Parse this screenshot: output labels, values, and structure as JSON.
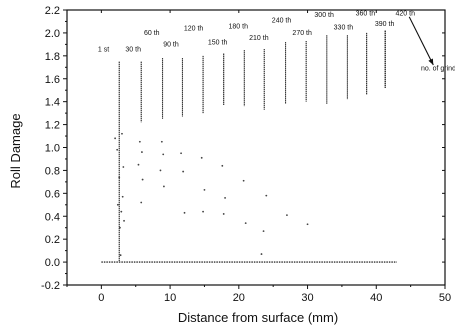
{
  "chart_data": {
    "type": "scatter",
    "title": "",
    "xlabel": "Distance from surface (mm)",
    "ylabel": "Roll Damage",
    "xlim": [
      -5,
      50
    ],
    "ylim": [
      -0.2,
      2.2
    ],
    "xticks": [
      0,
      10,
      20,
      30,
      40,
      50
    ],
    "yticks": [
      -0.2,
      0.0,
      0.2,
      0.4,
      0.6,
      0.8,
      1.0,
      1.2,
      1.4,
      1.6,
      1.8,
      2.0,
      2.2
    ],
    "grid": false,
    "legend": "none",
    "series": [
      {
        "label": "1 st",
        "x": 2.6,
        "y_top": 1.75,
        "y_bottom": 0.0
      },
      {
        "label": "30 th",
        "x": 5.8,
        "y_top": 1.75,
        "y_bottom": 1.22
      },
      {
        "label": "60 th",
        "x": 8.9,
        "y_top": 1.78,
        "y_bottom": 1.25
      },
      {
        "label": "90 th",
        "x": 11.8,
        "y_top": 1.78,
        "y_bottom": 1.27
      },
      {
        "label": "120 th",
        "x": 14.8,
        "y_top": 1.8,
        "y_bottom": 1.3
      },
      {
        "label": "150 th",
        "x": 17.8,
        "y_top": 1.82,
        "y_bottom": 1.37
      },
      {
        "label": "180 th",
        "x": 20.8,
        "y_top": 1.85,
        "y_bottom": 1.36
      },
      {
        "label": "210 th",
        "x": 23.7,
        "y_top": 1.86,
        "y_bottom": 1.33
      },
      {
        "label": "240 th",
        "x": 26.8,
        "y_top": 1.92,
        "y_bottom": 1.38
      },
      {
        "label": "270 th",
        "x": 29.8,
        "y_top": 1.93,
        "y_bottom": 1.4
      },
      {
        "label": "300 th",
        "x": 32.8,
        "y_top": 1.98,
        "y_bottom": 1.38
      },
      {
        "label": "330 th",
        "x": 35.8,
        "y_top": 1.98,
        "y_bottom": 1.42
      },
      {
        "label": "360 th",
        "x": 38.6,
        "y_top": 2.0,
        "y_bottom": 1.46
      },
      {
        "label": "390 th",
        "x": 41.3,
        "y_top": 2.02,
        "y_bottom": 1.52
      },
      {
        "label": "420 th",
        "x": 41.3,
        "y_top": 2.02,
        "y_bottom": 1.52
      }
    ],
    "annotations": [
      {
        "text": "1 st",
        "x": -0.5,
        "y": 1.84
      },
      {
        "text": "30 th",
        "x": 3.5,
        "y": 1.84
      },
      {
        "text": "60 th",
        "x": 6.2,
        "y": 1.98
      },
      {
        "text": "90 th",
        "x": 9.0,
        "y": 1.88
      },
      {
        "text": "120 th",
        "x": 12.0,
        "y": 2.02
      },
      {
        "text": "150 th",
        "x": 15.5,
        "y": 1.9
      },
      {
        "text": "180 th",
        "x": 18.5,
        "y": 2.04
      },
      {
        "text": "210 th",
        "x": 21.5,
        "y": 1.94
      },
      {
        "text": "240 th",
        "x": 24.8,
        "y": 2.09
      },
      {
        "text": "270 th",
        "x": 27.8,
        "y": 1.98
      },
      {
        "text": "300 th",
        "x": 31.0,
        "y": 2.14
      },
      {
        "text": "330 th",
        "x": 33.8,
        "y": 2.03
      },
      {
        "text": "360 th",
        "x": 37.0,
        "y": 2.15
      },
      {
        "text": "390 th",
        "x": 39.8,
        "y": 2.06
      },
      {
        "text": "420 th",
        "x": 42.8,
        "y": 2.15
      },
      {
        "text": "no. of grinding",
        "x": 46.5,
        "y": 1.67
      }
    ],
    "arrow": {
      "from": [
        44.8,
        2.14
      ],
      "to": [
        48.3,
        1.72
      ]
    },
    "scatter_points": [
      [
        2.0,
        1.08
      ],
      [
        3.0,
        1.12
      ],
      [
        2.3,
        0.98
      ],
      [
        3.2,
        0.83
      ],
      [
        2.6,
        0.74
      ],
      [
        3.1,
        0.57
      ],
      [
        2.4,
        0.5
      ],
      [
        2.9,
        0.44
      ],
      [
        3.3,
        0.36
      ],
      [
        2.7,
        0.3
      ],
      [
        2.8,
        0.06
      ],
      [
        5.6,
        1.05
      ],
      [
        5.9,
        0.96
      ],
      [
        5.4,
        0.85
      ],
      [
        6.0,
        0.72
      ],
      [
        5.8,
        0.52
      ],
      [
        8.8,
        1.05
      ],
      [
        9.0,
        0.94
      ],
      [
        8.6,
        0.8
      ],
      [
        9.1,
        0.66
      ],
      [
        11.6,
        0.95
      ],
      [
        11.9,
        0.79
      ],
      [
        12.1,
        0.43
      ],
      [
        14.6,
        0.91
      ],
      [
        15.0,
        0.63
      ],
      [
        14.8,
        0.44
      ],
      [
        17.6,
        0.84
      ],
      [
        18.0,
        0.56
      ],
      [
        17.8,
        0.42
      ],
      [
        20.7,
        0.71
      ],
      [
        21.0,
        0.34
      ],
      [
        24.0,
        0.58
      ],
      [
        23.6,
        0.27
      ],
      [
        23.3,
        0.07
      ],
      [
        27.0,
        0.41
      ],
      [
        30.0,
        0.33
      ]
    ],
    "baseline": {
      "y": 0.0,
      "x_start": 0.0,
      "x_end": 43.0
    }
  }
}
